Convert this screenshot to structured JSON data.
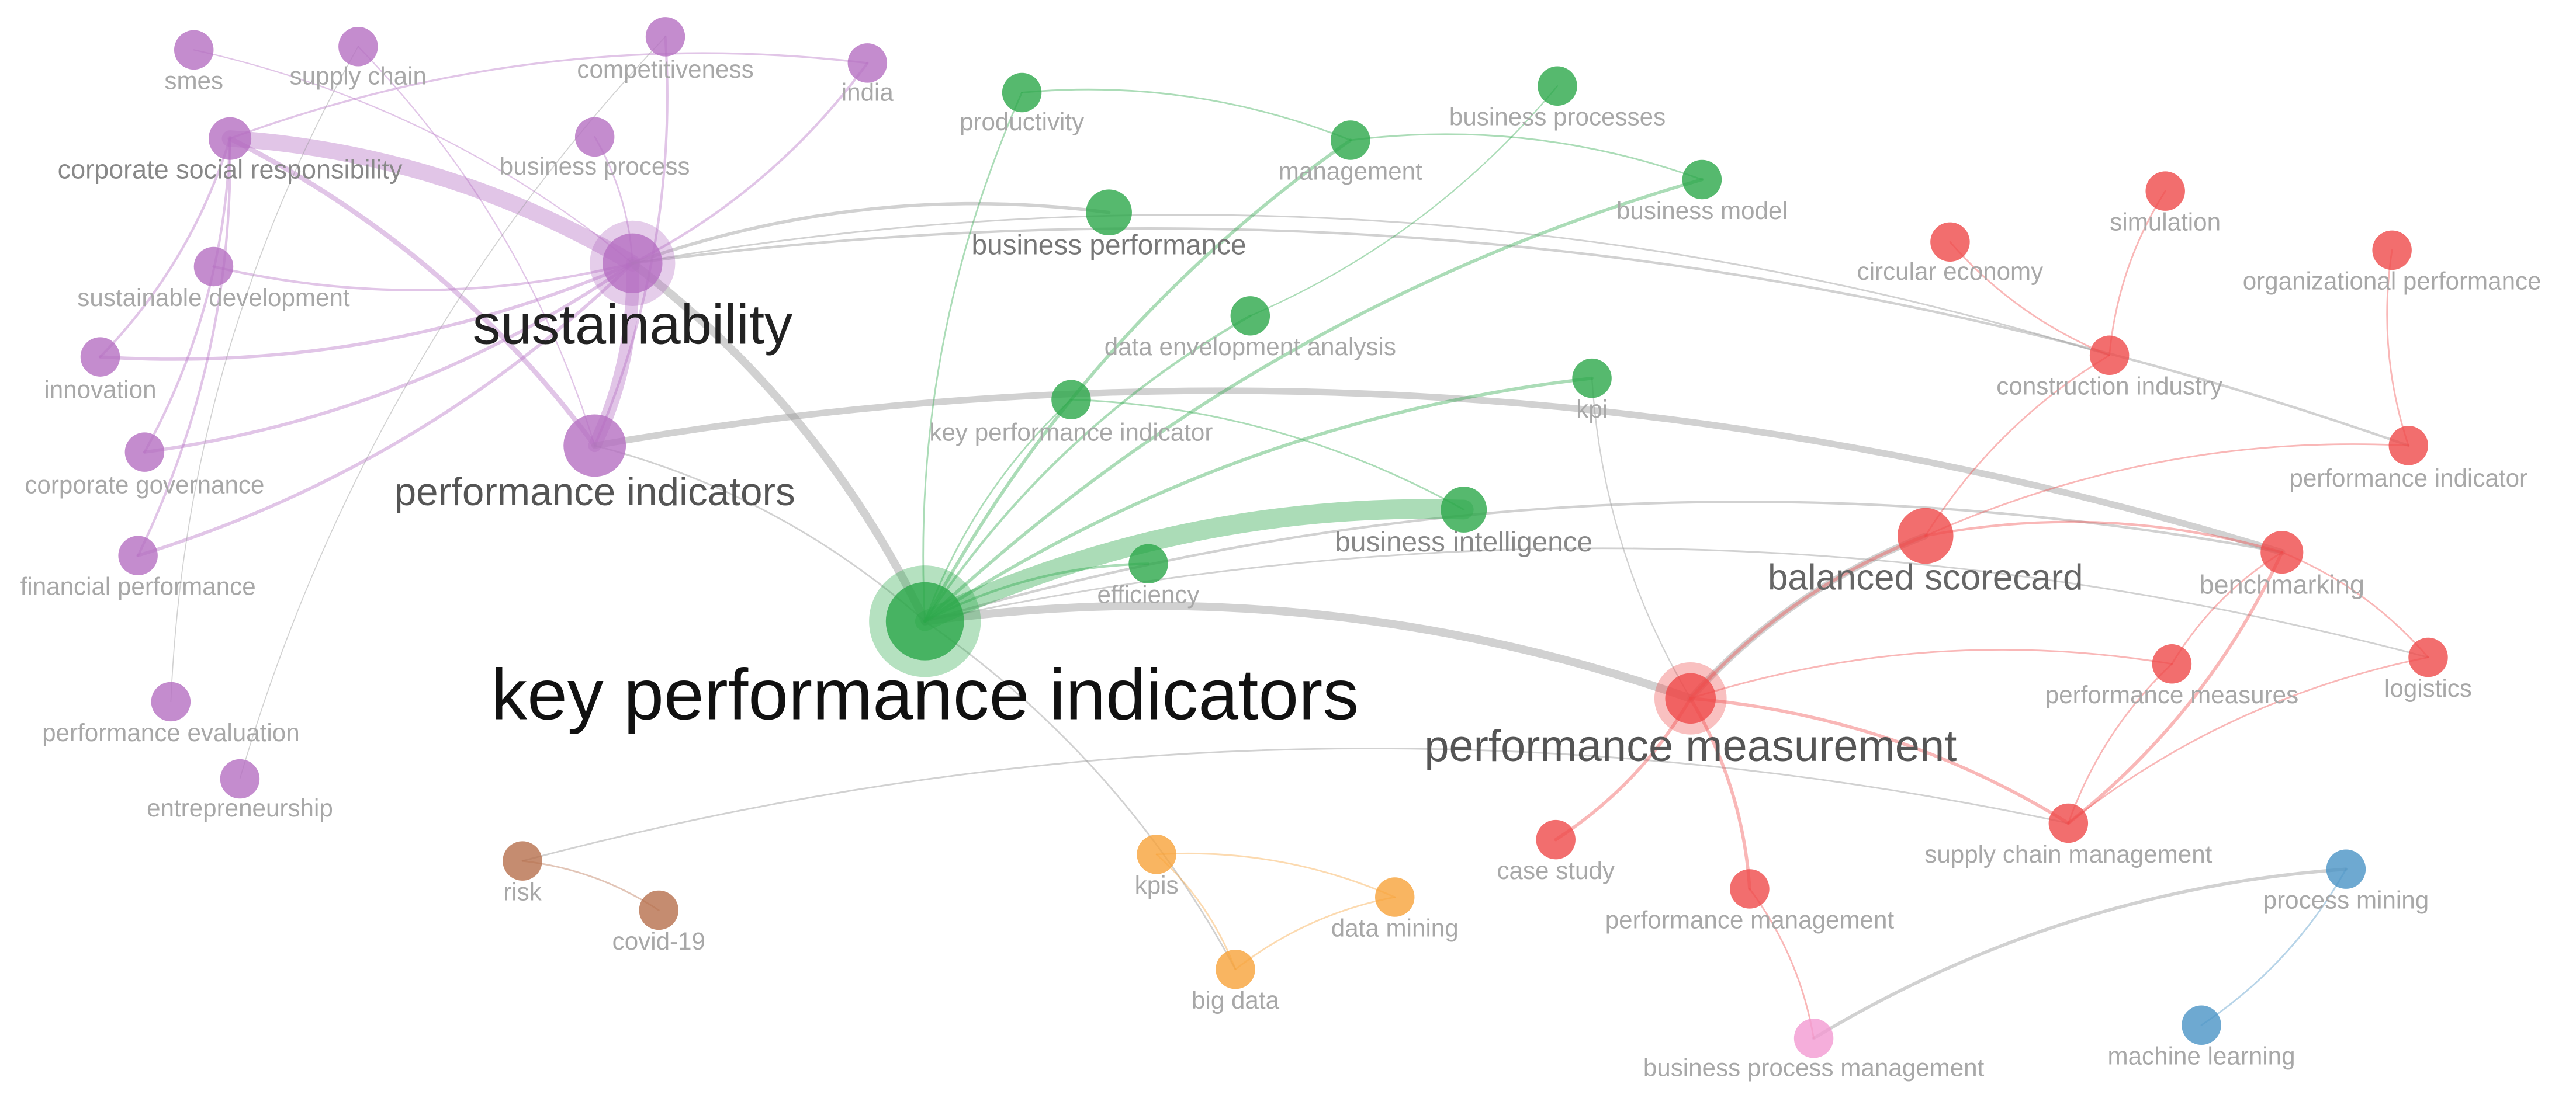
{
  "nodes": [
    "smes",
    "supply chain",
    "competitiveness",
    "india",
    "corporate social responsibility",
    "business process",
    "sustainable development",
    "sustainability",
    "innovation",
    "corporate governance",
    "performance indicators",
    "financial performance",
    "performance evaluation",
    "entrepreneurship",
    "productivity",
    "business processes",
    "management",
    "business model",
    "business performance",
    "data envelopment analysis",
    "key performance indicator",
    "kpi",
    "business intelligence",
    "efficiency",
    "key performance indicators",
    "circular economy",
    "simulation",
    "organizational performance",
    "construction industry",
    "performance indicator",
    "balanced scorecard",
    "benchmarking",
    "performance measures",
    "logistics",
    "performance measurement",
    "case study",
    "supply chain management",
    "performance management",
    "kpis",
    "data mining",
    "big data",
    "risk",
    "covid-19",
    "process mining",
    "machine learning",
    "business process management"
  ]
}
